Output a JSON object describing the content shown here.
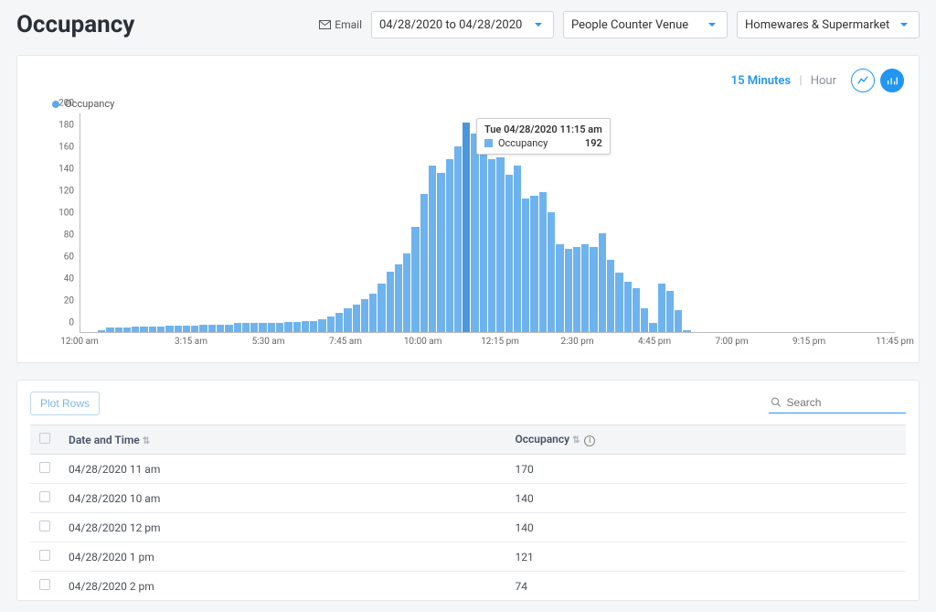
{
  "page_title": "Occupancy",
  "email_label": "Email",
  "dropdowns": {
    "date_range": "04/28/2020 to 04/28/2020",
    "venue": "People Counter Venue",
    "store": "Homewares & Supermarket"
  },
  "granularity": {
    "active": "15 Minutes",
    "inactive": "Hour"
  },
  "legend_label": "Occupancy",
  "chart": {
    "type": "bar",
    "bar_color": "#6eb3ee",
    "bar_hover_color": "#4a97dd",
    "axis_color": "#bbbbbb",
    "background_color": "#ffffff",
    "ylim": [
      0,
      200
    ],
    "ytick_step": 20,
    "yticks": [
      "0",
      "20",
      "40",
      "60",
      "80",
      "100",
      "120",
      "140",
      "160",
      "180",
      "200"
    ],
    "xticks": [
      {
        "pos": 0,
        "label": "12:00 am"
      },
      {
        "pos": 13.68,
        "label": "3:15 am"
      },
      {
        "pos": 23.16,
        "label": "5:30 am"
      },
      {
        "pos": 32.63,
        "label": "7:45 am"
      },
      {
        "pos": 42.11,
        "label": "10:00 am"
      },
      {
        "pos": 51.58,
        "label": "12:15 pm"
      },
      {
        "pos": 61.05,
        "label": "2:30 pm"
      },
      {
        "pos": 70.53,
        "label": "4:45 pm"
      },
      {
        "pos": 80.0,
        "label": "7:00 pm"
      },
      {
        "pos": 89.47,
        "label": "9:15 pm"
      },
      {
        "pos": 100,
        "label": "11:45 pm"
      }
    ],
    "values": [
      0,
      0,
      2,
      4,
      4,
      4,
      5,
      5,
      5,
      5,
      6,
      6,
      6,
      6,
      7,
      7,
      7,
      7,
      8,
      8,
      8,
      8,
      8,
      8,
      9,
      9,
      10,
      10,
      12,
      14,
      18,
      22,
      25,
      30,
      35,
      44,
      55,
      62,
      72,
      96,
      126,
      152,
      146,
      158,
      170,
      192,
      182,
      172,
      158,
      160,
      144,
      152,
      122,
      125,
      128,
      110,
      80,
      76,
      78,
      80,
      78,
      90,
      66,
      54,
      46,
      40,
      22,
      8,
      44,
      38,
      20,
      2,
      0,
      0,
      0,
      0,
      0,
      0,
      0,
      0,
      0,
      0,
      0,
      0,
      0,
      0,
      0,
      0,
      0,
      0,
      0,
      0,
      0,
      0,
      0,
      0
    ],
    "hover_index": 45
  },
  "tooltip": {
    "title": "Tue 04/28/2020 11:15 am",
    "series": "Occupancy",
    "value": "192"
  },
  "table": {
    "plot_rows_label": "Plot Rows",
    "search_placeholder": "Search",
    "columns": {
      "datetime": "Date and Time",
      "occupancy": "Occupancy"
    },
    "rows": [
      {
        "datetime": "04/28/2020 11 am",
        "occupancy": "170"
      },
      {
        "datetime": "04/28/2020 10 am",
        "occupancy": "140"
      },
      {
        "datetime": "04/28/2020 12 pm",
        "occupancy": "140"
      },
      {
        "datetime": "04/28/2020 1 pm",
        "occupancy": "121"
      },
      {
        "datetime": "04/28/2020 2 pm",
        "occupancy": "74"
      }
    ]
  }
}
